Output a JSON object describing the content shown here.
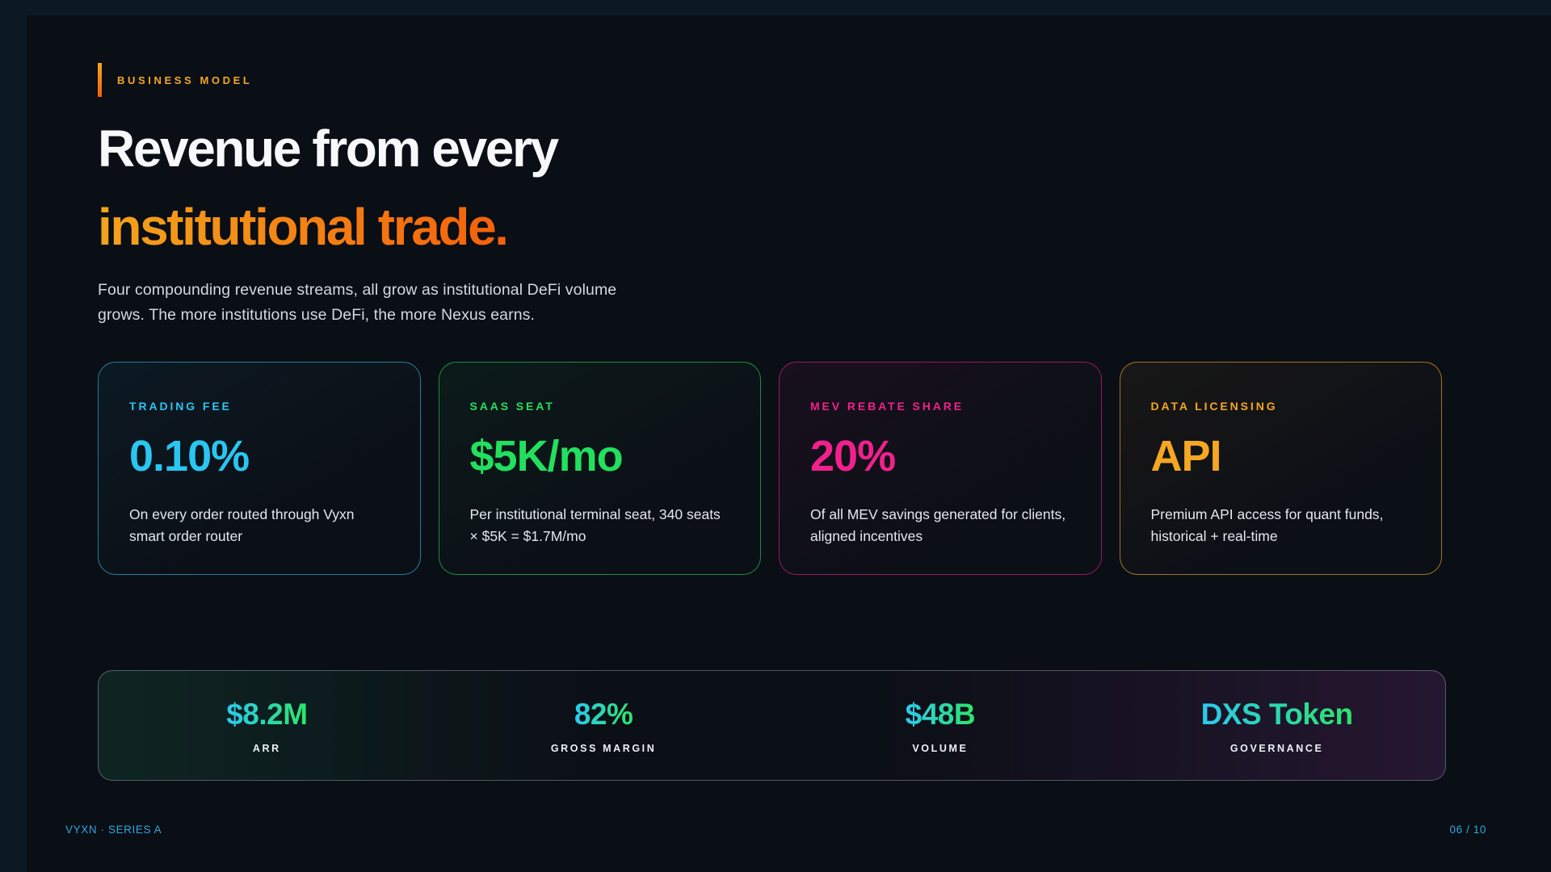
{
  "page": {
    "eyebrow": "BUSINESS MODEL",
    "title_line1": "Revenue from every",
    "title_line2": "institutional trade.",
    "subtitle": "Four compounding revenue streams, all grow as institutional DeFi volume grows. The more institutions use DeFi, the more Nexus earns.",
    "footer_left": "VYXN · SERIES A",
    "footer_right": "06 / 10"
  },
  "colors": {
    "page_background": "#0C1923",
    "slide_background": "#0A0E15",
    "accent_orange": "#F5A623",
    "title_gradient_from": "#F3A41C",
    "title_gradient_to": "#F4600B",
    "stat_gradient_from": "#2CC9EF",
    "stat_gradient_to": "#2BE668",
    "footer_color": "#2FA8DF"
  },
  "cards": [
    {
      "label": "TRADING FEE",
      "value": "0.10%",
      "description": "On every order routed through Vyxn smart order router",
      "accent": "#29C6F2",
      "border": "rgba(41,198,242,0.6)",
      "tint": "rgba(41,198,242,0.06)"
    },
    {
      "label": "SAAS SEAT",
      "value": "$5K/mo",
      "description": "Per institutional terminal seat, 340 seats × $5K = $1.7M/mo",
      "accent": "#22E05E",
      "border": "rgba(34,224,94,0.6)",
      "tint": "rgba(34,224,94,0.06)"
    },
    {
      "label": "MEV REBATE SHARE",
      "value": "20%",
      "description": "Of all MEV savings generated for clients, aligned incentives",
      "accent": "#F0218C",
      "border": "rgba(240,33,140,0.6)",
      "tint": "rgba(240,33,140,0.06)"
    },
    {
      "label": "DATA LICENSING",
      "value": "API",
      "description": "Premium API access for quant funds, historical + real-time",
      "accent": "#F5A623",
      "border": "rgba(245,166,35,0.65)",
      "tint": "rgba(245,166,35,0.06)"
    }
  ],
  "stats": [
    {
      "value": "$8.2M",
      "label": "ARR"
    },
    {
      "value": "82%",
      "label": "GROSS MARGIN"
    },
    {
      "value": "$48B",
      "label": "VOLUME"
    },
    {
      "value": "DXS Token",
      "label": "GOVERNANCE"
    }
  ]
}
